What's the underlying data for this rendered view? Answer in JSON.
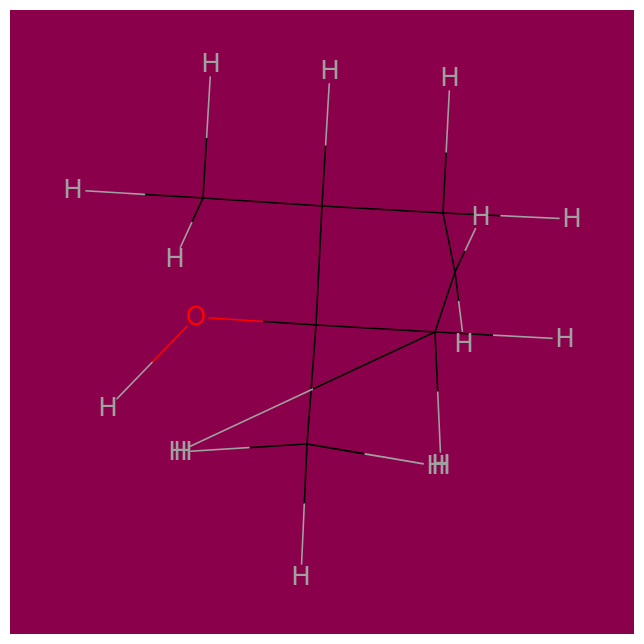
{
  "background_color": "#8B004B",
  "colors": {
    "carbon_bond": "#000000",
    "hydrogen": "#A0A0A0",
    "oxygen": "#FF0000"
  },
  "atoms": [
    {
      "id": "C1",
      "element": "C",
      "label": ""
    },
    {
      "id": "C2",
      "element": "C",
      "label": ""
    },
    {
      "id": "C3",
      "element": "C",
      "label": ""
    },
    {
      "id": "C4",
      "element": "C",
      "label": ""
    },
    {
      "id": "C5",
      "element": "C",
      "label": ""
    },
    {
      "id": "C6",
      "element": "C",
      "label": ""
    },
    {
      "id": "C7",
      "element": "C",
      "label": ""
    },
    {
      "id": "O1",
      "element": "O",
      "label": "O"
    },
    {
      "id": "H1",
      "element": "H",
      "label": "H"
    },
    {
      "id": "H2",
      "element": "H",
      "label": "H"
    },
    {
      "id": "H3",
      "element": "H",
      "label": "H"
    },
    {
      "id": "H4",
      "element": "H",
      "label": "H"
    },
    {
      "id": "H5",
      "element": "H",
      "label": "H"
    },
    {
      "id": "H6",
      "element": "H",
      "label": "H"
    },
    {
      "id": "H7",
      "element": "H",
      "label": "H"
    },
    {
      "id": "H8",
      "element": "H",
      "label": "H"
    },
    {
      "id": "H9",
      "element": "H",
      "label": "H"
    },
    {
      "id": "H10",
      "element": "H",
      "label": "H"
    },
    {
      "id": "H11",
      "element": "H",
      "label": "H"
    },
    {
      "id": "H12",
      "element": "H",
      "label": "H"
    },
    {
      "id": "H13",
      "element": "H",
      "label": "H"
    },
    {
      "id": "H14",
      "element": "H",
      "label": "H"
    },
    {
      "id": "H15",
      "element": "H",
      "label": "H"
    },
    {
      "id": "H16",
      "element": "H",
      "label": "H"
    }
  ],
  "bonds": [
    [
      "C1",
      "C2"
    ],
    [
      "C2",
      "C3"
    ],
    [
      "C3",
      "C4"
    ],
    [
      "C4",
      "C5"
    ],
    [
      "C5",
      "C6"
    ],
    [
      "C2",
      "C6"
    ],
    [
      "C6",
      "C7"
    ],
    [
      "C6",
      "O1"
    ],
    [
      "O1",
      "H1"
    ],
    [
      "C1",
      "H2"
    ],
    [
      "C1",
      "H3"
    ],
    [
      "C1",
      "H4"
    ],
    [
      "C2",
      "H5"
    ],
    [
      "C3",
      "H6"
    ],
    [
      "C3",
      "H7"
    ],
    [
      "C4",
      "H8"
    ],
    [
      "C4",
      "H9"
    ],
    [
      "C5",
      "H10"
    ],
    [
      "C5",
      "H11"
    ],
    [
      "C5",
      "H12"
    ],
    [
      "C7",
      "H13"
    ],
    [
      "C7",
      "H14"
    ],
    [
      "C7",
      "H15"
    ],
    [
      "C7",
      "H16"
    ]
  ]
}
